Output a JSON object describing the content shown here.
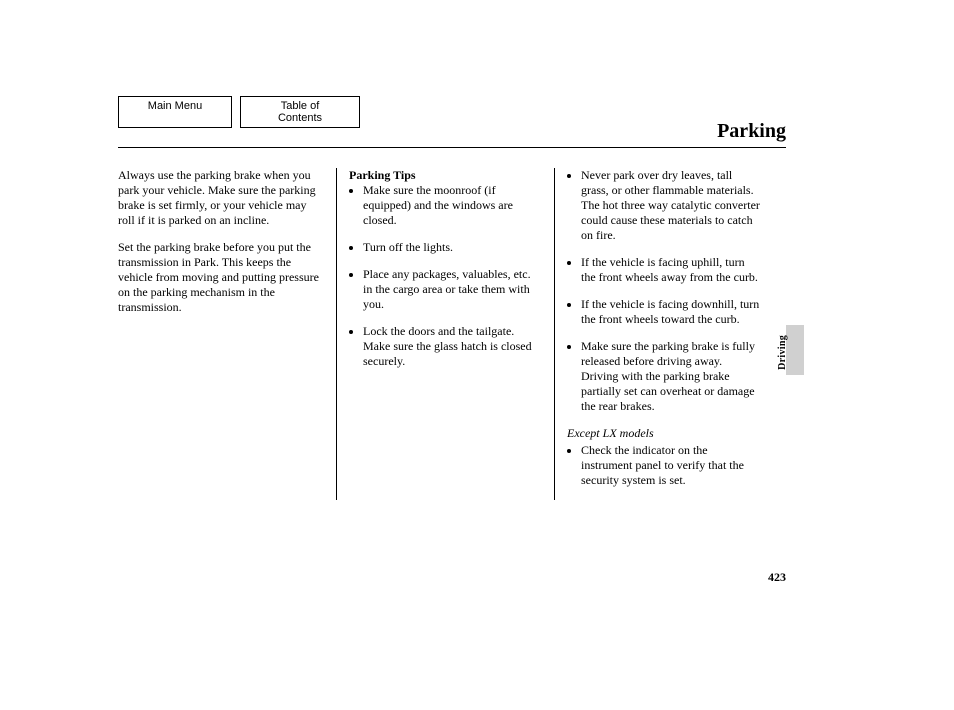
{
  "nav": {
    "main_menu": "Main Menu",
    "toc": "Table of Contents"
  },
  "header": {
    "title": "Parking"
  },
  "col1": {
    "p1": "Always use the parking brake when you park your vehicle. Make sure the parking brake is set firmly, or your vehicle may roll if it is parked on an incline.",
    "p2": "Set the parking brake before you put the transmission in Park. This keeps the vehicle from moving and putting pressure on the parking mechanism in the transmission."
  },
  "col2": {
    "tips_head": "Parking Tips",
    "tips": [
      "Make sure the moonroof (if equipped) and the windows are closed.",
      "Turn off the lights.",
      "Place any packages, valuables, etc. in the cargo area or take them with you.",
      "Lock the doors and the tailgate. Make sure the glass hatch is closed securely."
    ]
  },
  "col3": {
    "tips": [
      "Never park over dry leaves, tall grass, or other flammable materials. The hot three way catalytic converter could cause these materials to catch on fire.",
      "If the vehicle is facing uphill, turn the front wheels away from the curb.",
      "If the vehicle is facing downhill, turn the front wheels toward the curb.",
      "Make sure the parking brake is fully released before driving away. Driving with the parking brake partially set can overheat or damage the rear brakes."
    ],
    "except_label": "Except LX models",
    "except_tip": "Check the indicator on the instrument panel to verify that the security system is set."
  },
  "side": {
    "section": "Driving"
  },
  "page_number": "423"
}
